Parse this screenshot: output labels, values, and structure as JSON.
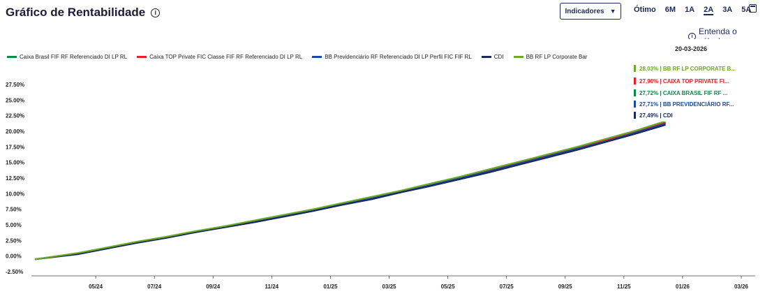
{
  "header": {
    "title": "Gráfico de Rentabilidade",
    "info_icon": "info-circle-icon",
    "indicators_label": "Indicadores",
    "periods": [
      "Ótimo",
      "6M",
      "1A",
      "2A",
      "3A",
      "5A"
    ],
    "active_period": "2A",
    "calc_link": "Entenda o cálculo"
  },
  "legend": [
    {
      "label": "Caixa Brasil FIF RF Referenciado DI LP RL",
      "color": "#0a8a4a"
    },
    {
      "label": "Caixa TOP Private FIC Classe FIF RF Referenciado DI LP RL",
      "color": "#e8202a"
    },
    {
      "label": "BB Previdenciário RF Referenciado DI LP Perfil FIC FIF RL",
      "color": "#1a4aa0"
    },
    {
      "label": "CDI",
      "color": "#1c2a5a"
    },
    {
      "label": "BB RF LP Corporate Bar",
      "color": "#6aaa2a"
    }
  ],
  "tooltip": {
    "date": "20-03-2026",
    "rows": [
      {
        "text": "28,03% | BB RF LP CORPORATE B...",
        "color": "#6aaa2a"
      },
      {
        "text": "27,90% | CAIXA TOP PRIVATE FI...",
        "color": "#e8202a"
      },
      {
        "text": "27,72% | CAIXA BRASIL FIF RF ...",
        "color": "#0a8a4a"
      },
      {
        "text": "27,71% | BB PREVIDENCIÁRIO RF...",
        "color": "#1a4aa0"
      },
      {
        "text": "27,49% | CDI",
        "color": "#1c2a5a"
      }
    ]
  },
  "chart_data": {
    "type": "line",
    "ylim": [
      -2.5,
      27.5
    ],
    "yticks": [
      "27.50%",
      "25.00%",
      "22.50%",
      "20.00%",
      "17.50%",
      "15.00%",
      "12.50%",
      "10.00%",
      "7.50%",
      "5.00%",
      "2.50%",
      "0.00%",
      "-2.50%"
    ],
    "xticks": [
      "05/24",
      "07/24",
      "09/24",
      "11/24",
      "01/25",
      "03/25",
      "05/25",
      "07/25",
      "09/25",
      "11/25",
      "01/26",
      "03/26"
    ],
    "x": [
      "2024-03",
      "2024-04",
      "2024-05",
      "2024-06",
      "2024-07",
      "2024-08",
      "2024-09",
      "2024-10",
      "2024-11",
      "2024-12",
      "2025-01",
      "2025-02",
      "2025-03",
      "2025-04",
      "2025-05",
      "2025-06",
      "2025-07",
      "2025-08",
      "2025-09",
      "2025-10",
      "2025-11",
      "2025-12"
    ],
    "series": [
      {
        "name": "Caixa Brasil FIF RF Referenciado DI LP RL",
        "color": "#0a8a4a",
        "values": [
          -0.5,
          0.4,
          1.3,
          2.2,
          3.0,
          3.9,
          4.7,
          5.6,
          6.5,
          7.4,
          8.4,
          9.3,
          10.4,
          11.4,
          12.5,
          13.6,
          14.8,
          16.0,
          17.3,
          18.5,
          19.8,
          21.3
        ]
      },
      {
        "name": "Caixa TOP Private FIC Classe FIF RF Referenciado DI LP RL",
        "color": "#e8202a",
        "values": [
          -0.5,
          0.4,
          1.3,
          2.2,
          3.0,
          3.9,
          4.7,
          5.6,
          6.5,
          7.4,
          8.4,
          9.4,
          10.4,
          11.5,
          12.6,
          13.7,
          14.9,
          16.1,
          17.4,
          18.6,
          19.9,
          21.4
        ]
      },
      {
        "name": "BB Previdenciário RF Referenciado DI LP Perfil FIC FIF RL",
        "color": "#1a4aa0",
        "values": [
          -0.5,
          0.4,
          1.3,
          2.2,
          3.0,
          3.8,
          4.7,
          5.5,
          6.4,
          7.3,
          8.3,
          9.3,
          10.3,
          11.4,
          12.5,
          13.6,
          14.8,
          16.0,
          17.2,
          18.4,
          19.8,
          21.2
        ]
      },
      {
        "name": "CDI",
        "color": "#1c2a5a",
        "values": [
          -0.5,
          0.3,
          1.2,
          2.1,
          2.9,
          3.8,
          4.6,
          5.4,
          6.3,
          7.2,
          8.2,
          9.1,
          10.2,
          11.2,
          12.3,
          13.4,
          14.6,
          15.8,
          17.0,
          18.3,
          19.6,
          21.0
        ]
      },
      {
        "name": "BB RF LP Corporate Bar",
        "color": "#6aaa2a",
        "values": [
          -0.5,
          0.5,
          1.4,
          2.3,
          3.1,
          4.0,
          4.8,
          5.7,
          6.6,
          7.5,
          8.5,
          9.5,
          10.5,
          11.6,
          12.7,
          13.9,
          15.1,
          16.3,
          17.5,
          18.8,
          20.1,
          21.6
        ]
      }
    ],
    "grid": false
  }
}
